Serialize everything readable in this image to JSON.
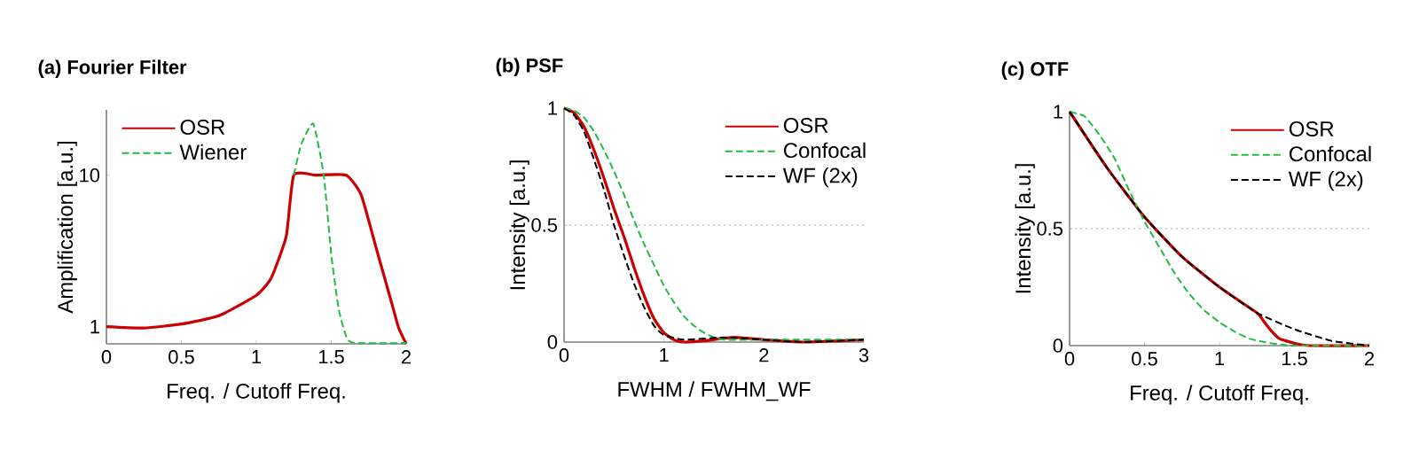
{
  "chart_data": [
    {
      "type": "line",
      "title": "(a) Fourier Filter",
      "xlabel": "Freq. / Cutoff Freq.",
      "ylabel": "Amplification [a.u.]",
      "log": "y",
      "xlim": [
        0,
        2
      ],
      "ylim": [
        0.77,
        27
      ],
      "xticks": [
        0,
        0.5,
        1,
        1.5,
        2
      ],
      "yticks": [
        1,
        10
      ],
      "legend": "top left",
      "series": [
        {
          "name": "OSR",
          "color": "#cc0000",
          "line_style": "solid",
          "x": [
            0,
            0.25,
            0.5,
            0.75,
            1,
            1.1,
            1.2,
            1.25,
            1.4,
            1.6,
            1.7,
            1.8,
            1.9,
            1.95,
            2
          ],
          "values": [
            1,
            0.98,
            1.04,
            1.18,
            1.61,
            2.1,
            3.96,
            10,
            10,
            10,
            7.4,
            3.3,
            1.47,
            0.98,
            0.77
          ]
        },
        {
          "name": "Wiener",
          "color": "#22bb44",
          "line_style": "dashed",
          "x": [
            1.25,
            1.3,
            1.38,
            1.45,
            1.5,
            1.55,
            1.6,
            1.65,
            2
          ],
          "values": [
            10,
            16,
            21.9,
            10,
            3,
            1.3,
            0.86,
            0.78,
            0.78
          ]
        }
      ]
    },
    {
      "type": "line",
      "title": "(b) PSF",
      "xlabel": "FWHM / FWHM_WF",
      "ylabel": "Intensity [a.u.]",
      "xlim": [
        0,
        3
      ],
      "ylim": [
        0,
        1
      ],
      "xticks": [
        0,
        1,
        2,
        3
      ],
      "yticks": [
        0,
        0.5,
        1
      ],
      "legend": "top right",
      "ref_lines": [
        {
          "axis": "y",
          "value": 0.5,
          "color": "#aaaaaa",
          "line_style": "dotted"
        }
      ],
      "series": [
        {
          "name": "OSR",
          "color": "#cc0000",
          "line_style": "solid",
          "x": [
            0,
            0.1,
            0.2,
            0.3,
            0.4,
            0.5,
            0.6,
            0.7,
            0.8,
            0.9,
            1.0,
            1.1,
            1.2,
            1.4,
            1.7,
            2.0,
            2.4,
            3
          ],
          "values": [
            1,
            0.98,
            0.92,
            0.82,
            0.7,
            0.57,
            0.45,
            0.32,
            0.2,
            0.1,
            0.04,
            0.01,
            0,
            0.005,
            0.02,
            0.01,
            0,
            0.01
          ]
        },
        {
          "name": "Confocal",
          "color": "#22bb44",
          "line_style": "dashed",
          "x": [
            0,
            0.1,
            0.2,
            0.3,
            0.4,
            0.5,
            0.6,
            0.7,
            0.8,
            0.9,
            1.0,
            1.1,
            1.2,
            1.3,
            1.4,
            1.5,
            1.6,
            2,
            3
          ],
          "values": [
            1,
            0.99,
            0.96,
            0.9,
            0.82,
            0.73,
            0.63,
            0.52,
            0.42,
            0.33,
            0.24,
            0.17,
            0.11,
            0.07,
            0.04,
            0.02,
            0.01,
            0.01,
            0.01
          ]
        },
        {
          "name": "WF (2x)",
          "color": "#000000",
          "line_style": "dashed",
          "x": [
            0,
            0.1,
            0.2,
            0.3,
            0.4,
            0.5,
            0.6,
            0.7,
            0.8,
            0.9,
            1.0,
            1.2,
            1.6,
            2,
            2.4,
            3
          ],
          "values": [
            1,
            0.97,
            0.9,
            0.78,
            0.65,
            0.5,
            0.37,
            0.25,
            0.15,
            0.07,
            0.03,
            0.01,
            0.02,
            0.01,
            0,
            0.01
          ]
        }
      ]
    },
    {
      "type": "line",
      "title": "(c) OTF",
      "xlabel": "Freq. / Cutoff Freq.",
      "ylabel": "Intensity [a.u.]",
      "xlim": [
        0,
        2
      ],
      "ylim": [
        0,
        1
      ],
      "xticks": [
        0,
        0.5,
        1,
        1.5,
        2
      ],
      "yticks": [
        0,
        0.5,
        1
      ],
      "legend": "top right",
      "ref_lines": [
        {
          "axis": "y",
          "value": 0.5,
          "color": "#aaaaaa",
          "line_style": "dotted"
        }
      ],
      "series": [
        {
          "name": "OSR",
          "color": "#cc0000",
          "line_style": "solid",
          "x": [
            0,
            0.25,
            0.5,
            0.75,
            1,
            1.25,
            1.3,
            1.35,
            1.4,
            1.5,
            1.6,
            2
          ],
          "values": [
            1,
            0.76,
            0.55,
            0.38,
            0.25,
            0.14,
            0.1,
            0.06,
            0.03,
            0.01,
            0,
            0
          ]
        },
        {
          "name": "Confocal",
          "color": "#22bb44",
          "line_style": "dashed",
          "x": [
            0,
            0.1,
            0.2,
            0.3,
            0.4,
            0.5,
            0.6,
            0.7,
            0.8,
            0.9,
            1,
            1.1,
            1.2,
            1.3,
            1.4,
            1.5,
            2
          ],
          "values": [
            1,
            0.98,
            0.9,
            0.8,
            0.66,
            0.53,
            0.42,
            0.31,
            0.22,
            0.15,
            0.1,
            0.06,
            0.03,
            0.015,
            0.005,
            0,
            0
          ]
        },
        {
          "name": "WF (2x)",
          "color": "#000000",
          "line_style": "dashed",
          "x": [
            0,
            0.25,
            0.5,
            0.75,
            1,
            1.25,
            1.5,
            1.75,
            2
          ],
          "values": [
            1,
            0.76,
            0.55,
            0.38,
            0.25,
            0.14,
            0.07,
            0.02,
            0
          ]
        }
      ]
    }
  ]
}
